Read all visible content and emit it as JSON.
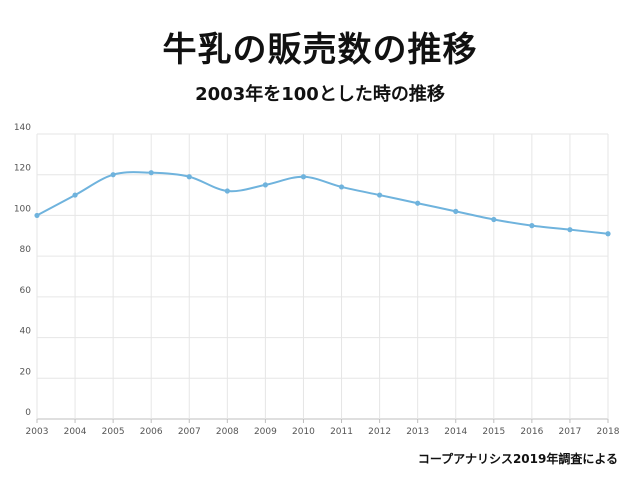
{
  "header": {
    "title": "牛乳の販売数の推移",
    "subtitle": "2003年を100とした時の推移"
  },
  "footer": {
    "source": "コープアナリシス2019年調査による"
  },
  "colors": {
    "line": "#6fb3dd",
    "grid": "#e6e6e6",
    "axis": "#bfbfbf"
  },
  "chart_data": {
    "type": "line",
    "title": "牛乳の販売数の推移",
    "subtitle": "2003年を100とした時の推移",
    "xlabel": "",
    "ylabel": "",
    "x": [
      "2003",
      "2004",
      "2005",
      "2006",
      "2007",
      "2008",
      "2009",
      "2010",
      "2011",
      "2012",
      "2013",
      "2014",
      "2015",
      "2016",
      "2017",
      "2018"
    ],
    "series": [
      {
        "values": [
          100,
          110,
          120,
          121,
          119,
          112,
          115,
          119,
          114,
          110,
          106,
          102,
          98,
          95,
          93,
          91
        ]
      }
    ],
    "ylim": [
      0,
      140
    ],
    "yticks": [
      0,
      20,
      40,
      60,
      80,
      100,
      120,
      140
    ],
    "grid": true,
    "smooth": true
  }
}
